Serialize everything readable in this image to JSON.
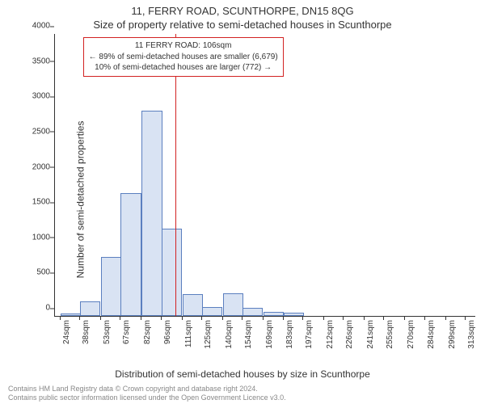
{
  "title_line1": "11, FERRY ROAD, SCUNTHORPE, DN15 8QG",
  "title_line2": "Size of property relative to semi-detached houses in Scunthorpe",
  "ylabel": "Number of semi-detached properties",
  "xlabel": "Distribution of semi-detached houses by size in Scunthorpe",
  "footer_line1": "Contains HM Land Registry data © Crown copyright and database right 2024.",
  "footer_line2": "Contains public sector information licensed under the Open Government Licence v3.0.",
  "chart": {
    "type": "histogram",
    "ylim": [
      0,
      4000
    ],
    "ytick_step": 500,
    "xlim": [
      20,
      320
    ],
    "xtick_start": 24,
    "xtick_end": 313,
    "xtick_count": 21,
    "xtick_suffix": "sqm",
    "bar_fill": "#d9e3f3",
    "bar_stroke": "#5b7fbf",
    "background_color": "#ffffff",
    "axis_color": "#333333",
    "bin_width": 14.5,
    "bars": [
      {
        "x": 24,
        "v": 30
      },
      {
        "x": 38,
        "v": 210
      },
      {
        "x": 53,
        "v": 840
      },
      {
        "x": 67,
        "v": 1740
      },
      {
        "x": 82,
        "v": 2910
      },
      {
        "x": 96,
        "v": 1240
      },
      {
        "x": 111,
        "v": 310
      },
      {
        "x": 125,
        "v": 130
      },
      {
        "x": 140,
        "v": 320
      },
      {
        "x": 154,
        "v": 110
      },
      {
        "x": 169,
        "v": 60
      },
      {
        "x": 183,
        "v": 45
      },
      {
        "x": 197,
        "v": 0
      },
      {
        "x": 212,
        "v": 0
      },
      {
        "x": 226,
        "v": 0
      },
      {
        "x": 241,
        "v": 0
      },
      {
        "x": 255,
        "v": 0
      },
      {
        "x": 270,
        "v": 0
      },
      {
        "x": 284,
        "v": 0
      },
      {
        "x": 299,
        "v": 0
      }
    ],
    "reference_line": {
      "x": 106,
      "color": "#d22222",
      "width": 1
    },
    "annotation": {
      "line1": "11 FERRY ROAD: 106sqm",
      "line2": "← 89% of semi-detached houses are smaller (6,679)",
      "line3": "10% of semi-detached houses are larger (772) →",
      "border_color": "#d22222",
      "text_color": "#333333"
    }
  }
}
